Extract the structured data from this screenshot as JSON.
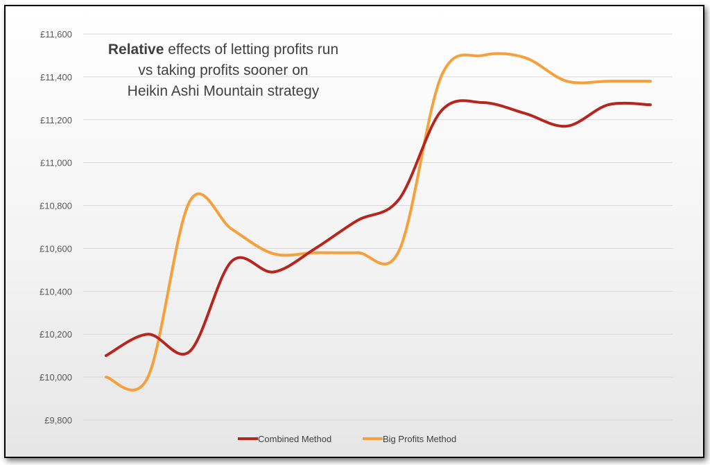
{
  "chart_data": {
    "type": "line",
    "title_line1_bold": "Relative",
    "title_line1_rest": " effects of letting profits run",
    "title_line2": "vs taking profits sooner on",
    "title_line3": "Heikin Ashi Mountain strategy",
    "xlabel": "",
    "ylabel": "",
    "ylim": [
      9800,
      11600
    ],
    "yticks": [
      "£9,800",
      "£10,000",
      "£10,200",
      "£10,400",
      "£10,600",
      "£10,800",
      "£11,000",
      "£11,200",
      "£11,400",
      "£11,600"
    ],
    "grid": true,
    "legend_position": "bottom",
    "x": [
      1,
      2,
      3,
      4,
      5,
      6,
      7,
      8,
      9,
      10,
      11,
      12,
      13,
      14
    ],
    "series": [
      {
        "name": "Combined Method",
        "color": "#b5261e",
        "values": [
          10100,
          10200,
          10120,
          10540,
          10490,
          10600,
          10730,
          10830,
          11240,
          11280,
          11230,
          11170,
          11270,
          11270
        ]
      },
      {
        "name": "Big Profits Method",
        "color": "#f5a03a",
        "values": [
          10000,
          10000,
          10820,
          10690,
          10575,
          10580,
          10580,
          10590,
          11400,
          11500,
          11490,
          11380,
          11380,
          11380
        ]
      }
    ]
  }
}
